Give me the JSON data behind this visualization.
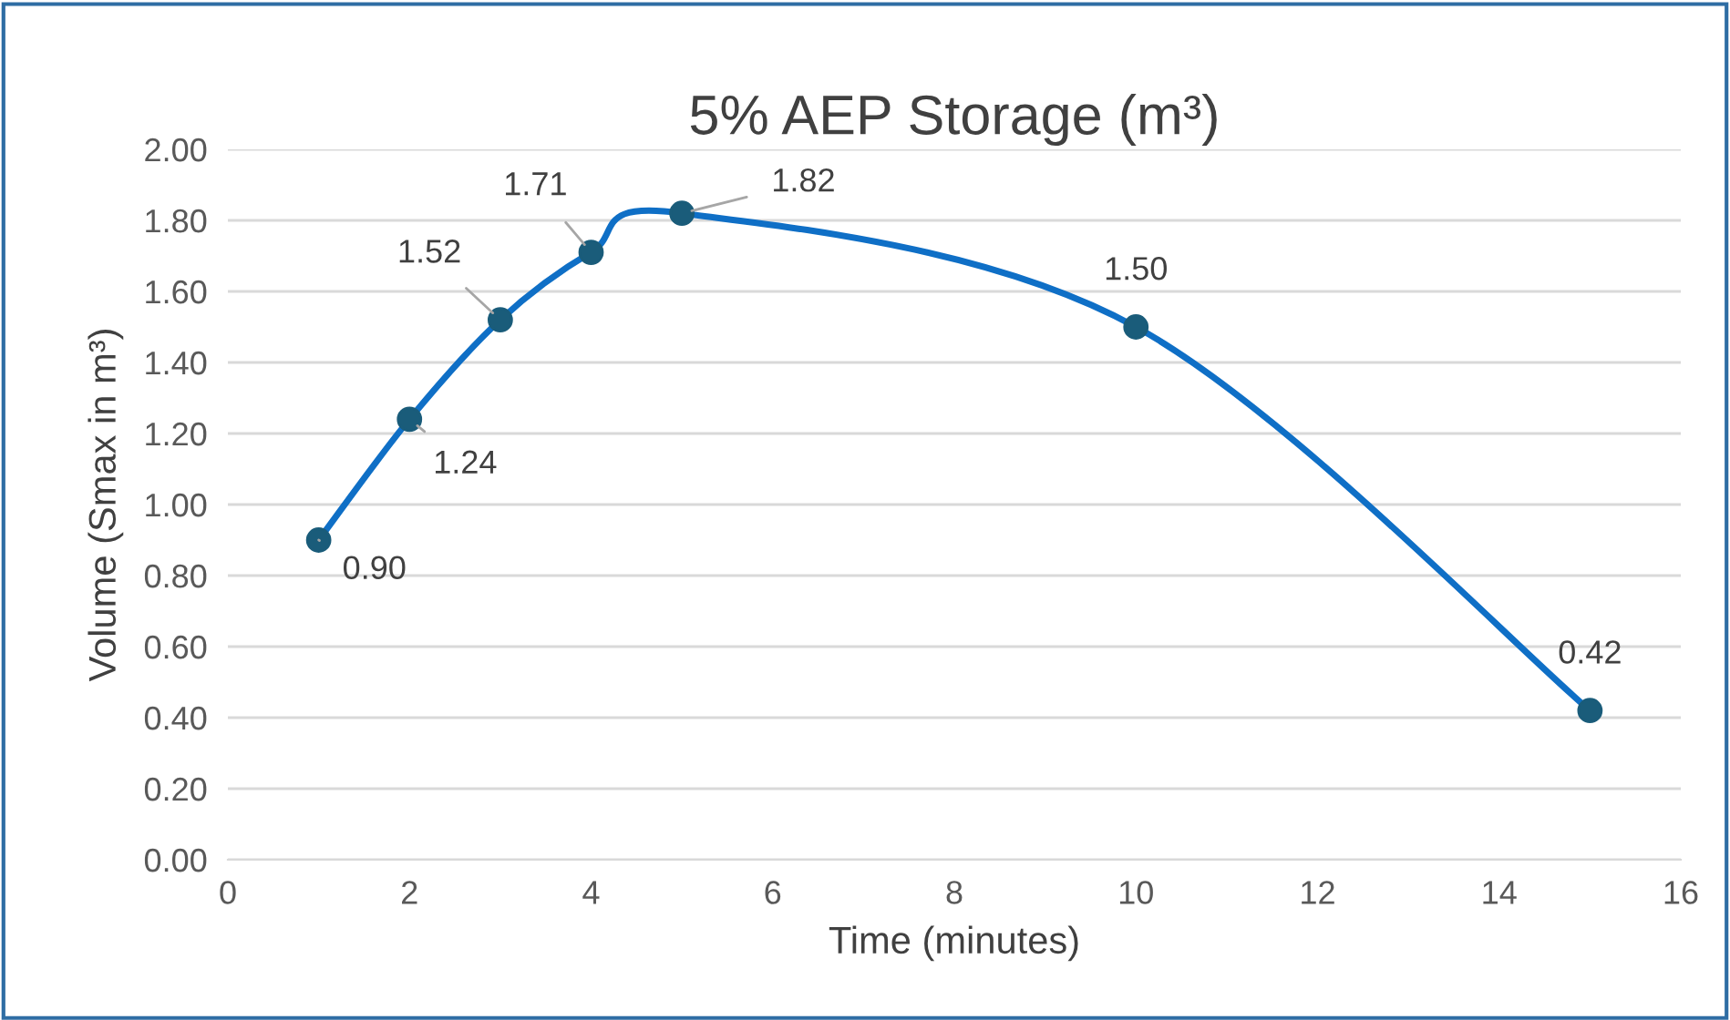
{
  "chart_data": {
    "type": "line",
    "title": "5% AEP Storage (m³)",
    "xlabel": "Time (minutes)",
    "ylabel": "Volume (Smax in m³)",
    "x": [
      1,
      2,
      3,
      4,
      5,
      10,
      15
    ],
    "series": [
      {
        "color": "#0f6fc6",
        "values": [
          0.9,
          1.24,
          1.52,
          1.71,
          1.82,
          1.5,
          0.42
        ],
        "value_labels": [
          "0.90",
          "1.24",
          "1.52",
          "1.71",
          "1.82",
          "1.50",
          "0.42"
        ]
      }
    ],
    "marker": "circle",
    "line_style": "solid",
    "grid": "y",
    "legend": false,
    "xlim": [
      0,
      16
    ],
    "xticks": [
      0,
      2,
      4,
      6,
      8,
      10,
      12,
      14,
      16
    ],
    "ylim": [
      0,
      2
    ],
    "yticks": [
      {
        "value": 0,
        "label": "0.00"
      },
      {
        "value": 0.2,
        "label": "0.20"
      },
      {
        "value": 0.4,
        "label": "0.40"
      },
      {
        "value": 0.6,
        "label": "0.60"
      },
      {
        "value": 0.8,
        "label": "0.80"
      },
      {
        "value": 1,
        "label": "1.00"
      },
      {
        "value": 1.2,
        "label": "1.20"
      },
      {
        "value": 1.4,
        "label": "1.40"
      },
      {
        "value": 1.6,
        "label": "1.60"
      },
      {
        "value": 1.8,
        "label": "1.80"
      },
      {
        "value": 2,
        "label": "2.00"
      }
    ]
  }
}
